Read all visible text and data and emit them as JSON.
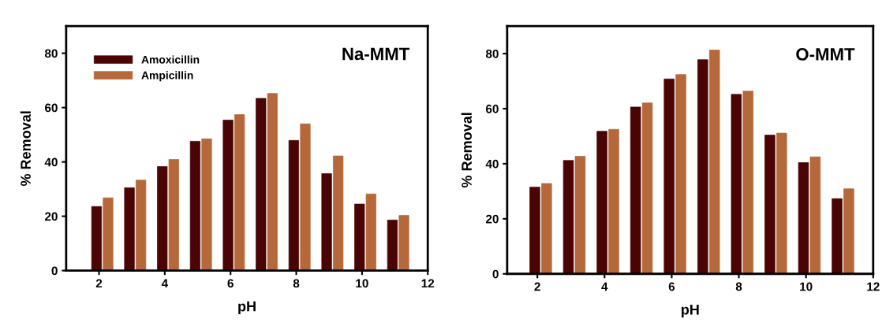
{
  "chart_data": [
    {
      "type": "bar",
      "x": [
        2,
        3,
        4,
        5,
        6,
        7,
        8,
        9,
        10,
        11
      ],
      "xlabel": "pH",
      "ylabel": "% Removal",
      "annotations": [
        "Na-MMT"
      ],
      "xlim": [
        1,
        12
      ],
      "xticks": [
        2,
        4,
        6,
        8,
        10,
        12
      ],
      "ylim": [
        0,
        90
      ],
      "yticks": [
        0,
        20,
        40,
        60,
        80
      ],
      "grid": false,
      "legend": "top left",
      "series": [
        {
          "name": "Amoxicillin",
          "color": "#4a0404",
          "values": [
            23.6,
            30.5,
            38.3,
            47.6,
            55.4,
            63.4,
            47.9,
            35.7,
            24.5,
            18.6
          ]
        },
        {
          "name": "Ampicillin",
          "color": "#b5683a",
          "values": [
            26.8,
            33.3,
            40.9,
            48.5,
            57.4,
            65.2,
            54.0,
            42.2,
            28.2,
            20.3
          ]
        }
      ]
    },
    {
      "type": "bar",
      "x": [
        2,
        3,
        4,
        5,
        6,
        7,
        8,
        9,
        10,
        11
      ],
      "xlabel": "pH",
      "ylabel": "% Removal",
      "annotations": [
        "O-MMT"
      ],
      "xlim": [
        1.1,
        12
      ],
      "xticks": [
        2,
        4,
        6,
        8,
        10,
        12
      ],
      "ylim": [
        0,
        90
      ],
      "yticks": [
        0,
        20,
        40,
        60,
        80
      ],
      "grid": false,
      "legend": false,
      "series": [
        {
          "color": "#4a0404",
          "values": [
            31.5,
            41.2,
            51.8,
            60.6,
            70.8,
            77.8,
            65.2,
            50.4,
            40.4,
            27.3
          ]
        },
        {
          "color": "#b5683a",
          "values": [
            32.8,
            42.7,
            52.5,
            62.1,
            72.4,
            81.3,
            66.4,
            51.1,
            42.5,
            30.9
          ]
        }
      ]
    }
  ]
}
